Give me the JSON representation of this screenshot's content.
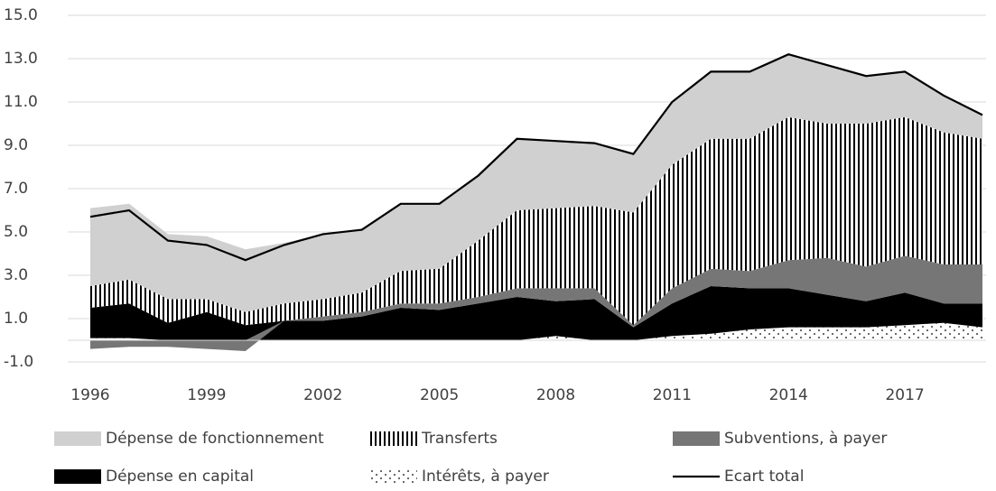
{
  "chart_data": {
    "type": "stacked_area",
    "categories": [
      "1996",
      null,
      null,
      "1999",
      null,
      null,
      "2002",
      null,
      null,
      "2005",
      null,
      null,
      "2008",
      null,
      null,
      "2011",
      null,
      null,
      "2014",
      null,
      null,
      "2017",
      null,
      null
    ],
    "ylim": [
      -1,
      15
    ],
    "yticks": [
      {
        "value": -1,
        "label": "-1.0"
      },
      {
        "value": 1,
        "label": "1.0"
      },
      {
        "value": 3,
        "label": "3.0"
      },
      {
        "value": 5,
        "label": "5.0"
      },
      {
        "value": 7,
        "label": "7.0"
      },
      {
        "value": 9,
        "label": "9.0"
      },
      {
        "value": 11,
        "label": "11.0"
      },
      {
        "value": 13,
        "label": "13.0"
      },
      {
        "value": 15,
        "label": "15.0"
      }
    ],
    "grid": true,
    "legend": "bottom",
    "series": [
      {
        "name": "Dépense de fonctionnement",
        "color": "#d0d0d0",
        "values": [
          3.6,
          3.5,
          3.0,
          2.9,
          2.9,
          2.8,
          3.0,
          2.9,
          3.1,
          3.0,
          3.0,
          3.3,
          3.1,
          2.9,
          2.7,
          2.9,
          3.1,
          3.1,
          2.9,
          2.7,
          2.2,
          2.1,
          1.7,
          1.1
        ]
      },
      {
        "name": "Transferts",
        "color": "#000000",
        "pattern": "stripes",
        "values": [
          1.0,
          1.1,
          1.1,
          0.6,
          0.6,
          0.8,
          0.8,
          0.9,
          1.5,
          1.6,
          2.6,
          3.6,
          3.7,
          3.8,
          5.2,
          5.7,
          6.0,
          6.1,
          6.6,
          6.2,
          6.6,
          6.4,
          6.1,
          5.8
        ]
      },
      {
        "name": "Subventions, à payer",
        "color": "#767676",
        "values": [
          -0.4,
          -0.3,
          -0.3,
          -0.4,
          -0.5,
          0,
          0.2,
          0.2,
          0.2,
          0.3,
          0.3,
          0.4,
          0.6,
          0.5,
          0.1,
          0.7,
          0.8,
          0.8,
          1.3,
          1.7,
          1.6,
          1.7,
          1.8,
          1.8
        ]
      },
      {
        "name": "Dépense en capital",
        "color": "#000000",
        "values": [
          1.4,
          1.6,
          0.8,
          1.3,
          0.7,
          0.9,
          0.9,
          1.1,
          1.5,
          1.4,
          1.7,
          2.0,
          1.6,
          1.9,
          0.6,
          1.5,
          2.2,
          1.9,
          1.8,
          1.5,
          1.2,
          1.5,
          0.9,
          1.1
        ]
      },
      {
        "name": "Intérêts, à payer",
        "color": "#000000",
        "pattern": "dots",
        "values": [
          0.1,
          0.1,
          0,
          0,
          0,
          0,
          0,
          0,
          0,
          0,
          0,
          0,
          0.2,
          0,
          0,
          0.2,
          0.3,
          0.5,
          0.6,
          0.6,
          0.6,
          0.7,
          0.8,
          0.6
        ]
      },
      {
        "name": "Ecart total",
        "color": "#000000",
        "kind": "line",
        "values": [
          5.7,
          6.0,
          4.6,
          4.4,
          3.7,
          4.4,
          4.9,
          5.1,
          6.3,
          6.3,
          7.6,
          9.3,
          9.2,
          9.1,
          8.6,
          11.0,
          12.4,
          12.4,
          13.2,
          12.7,
          12.2,
          12.4,
          11.3,
          10.4
        ]
      }
    ]
  }
}
